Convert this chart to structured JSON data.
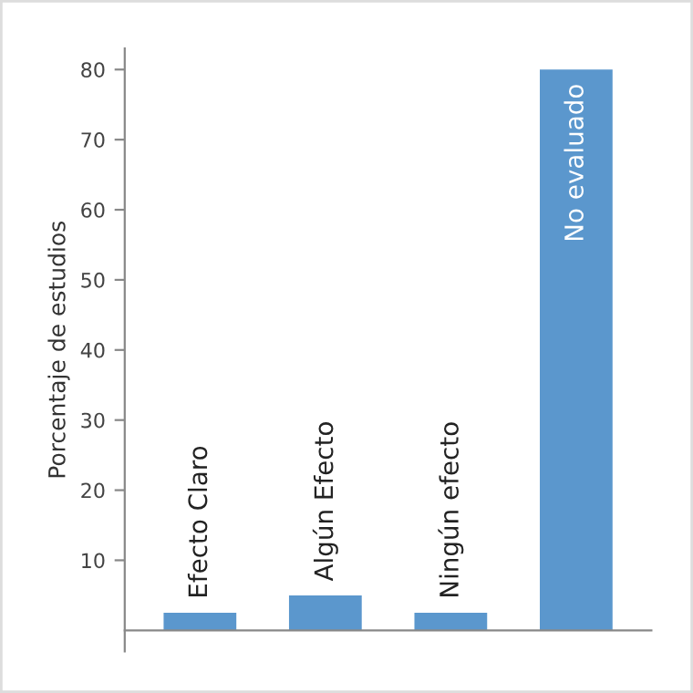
{
  "chart_data": {
    "type": "bar",
    "ylabel": "Porcentaje de estudios",
    "categories": [
      "Efecto Claro",
      "Algún Efecto",
      "Ningún efecto",
      "No evaluado"
    ],
    "values": [
      2.5,
      5,
      2.5,
      80
    ],
    "color": "#5b97cd",
    "ylim": [
      -3,
      83
    ],
    "yticks": [
      10,
      20,
      30,
      40,
      50,
      60,
      70,
      80
    ],
    "grid": false
  }
}
